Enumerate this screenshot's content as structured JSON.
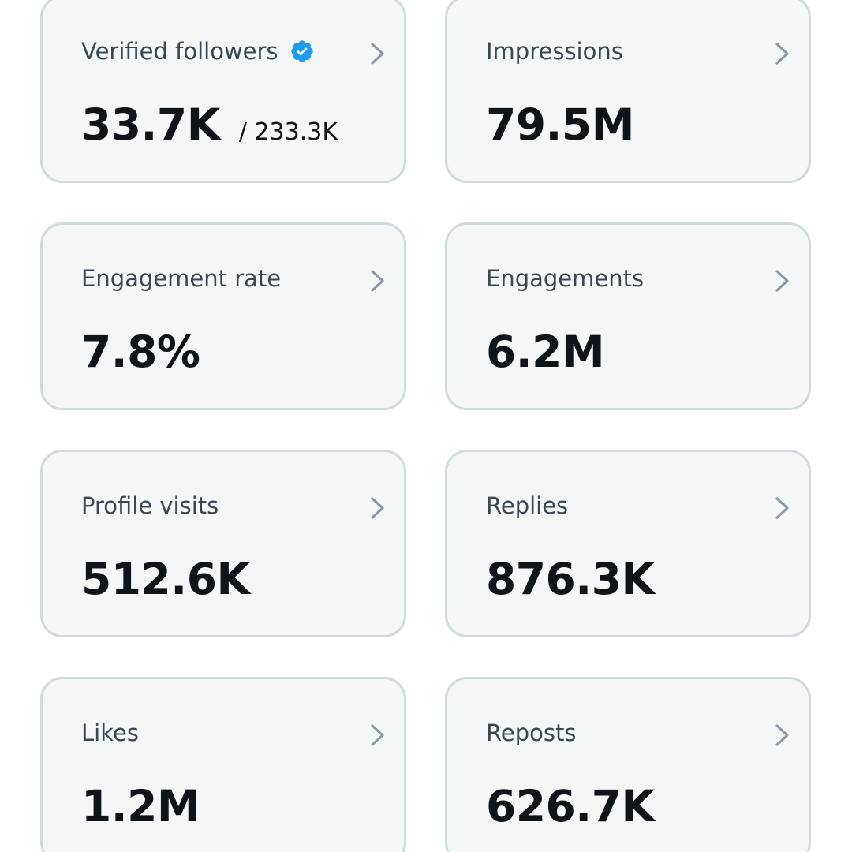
{
  "colors": {
    "card_background": "#f5f7f7",
    "card_border": "#cfd9de",
    "label_text": "#3a4651",
    "value_text": "#0f1419",
    "chevron": "#8b98a5",
    "verified_badge": "#1d9bf0"
  },
  "metrics": [
    {
      "label": "Verified followers",
      "value": "33.7K",
      "total": "/ 233.3K",
      "icon": "verified-badge-icon"
    },
    {
      "label": "Impressions",
      "value": "79.5M"
    },
    {
      "label": "Engagement rate",
      "value": "7.8%"
    },
    {
      "label": "Engagements",
      "value": "6.2M"
    },
    {
      "label": "Profile visits",
      "value": "512.6K"
    },
    {
      "label": "Replies",
      "value": "876.3K"
    },
    {
      "label": "Likes",
      "value": "1.2M"
    },
    {
      "label": "Reposts",
      "value": "626.7K"
    }
  ]
}
